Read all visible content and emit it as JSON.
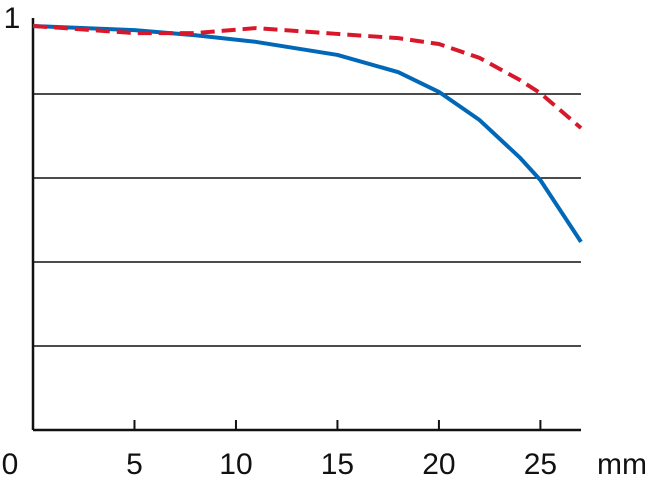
{
  "chart_data": {
    "type": "line",
    "xlabel": "mm",
    "x": [
      0,
      5,
      8,
      11,
      15,
      18,
      20,
      22,
      24,
      25,
      27
    ],
    "series": [
      {
        "color": "#0068b7",
        "dash": false,
        "values": [
          0.962,
          0.952,
          0.94,
          0.924,
          0.893,
          0.852,
          0.805,
          0.738,
          0.648,
          0.595,
          0.448
        ]
      },
      {
        "color": "#d9172a",
        "dash": true,
        "values": [
          0.962,
          0.945,
          0.945,
          0.957,
          0.943,
          0.933,
          0.919,
          0.886,
          0.833,
          0.802,
          0.719
        ]
      }
    ],
    "xlim": [
      0,
      27
    ],
    "ylim": [
      0,
      1
    ],
    "xticks": [
      0,
      5,
      10,
      15,
      20,
      25
    ],
    "yticks": [
      1
    ],
    "grid_values": [
      0.2,
      0.4,
      0.6,
      0.8
    ]
  }
}
